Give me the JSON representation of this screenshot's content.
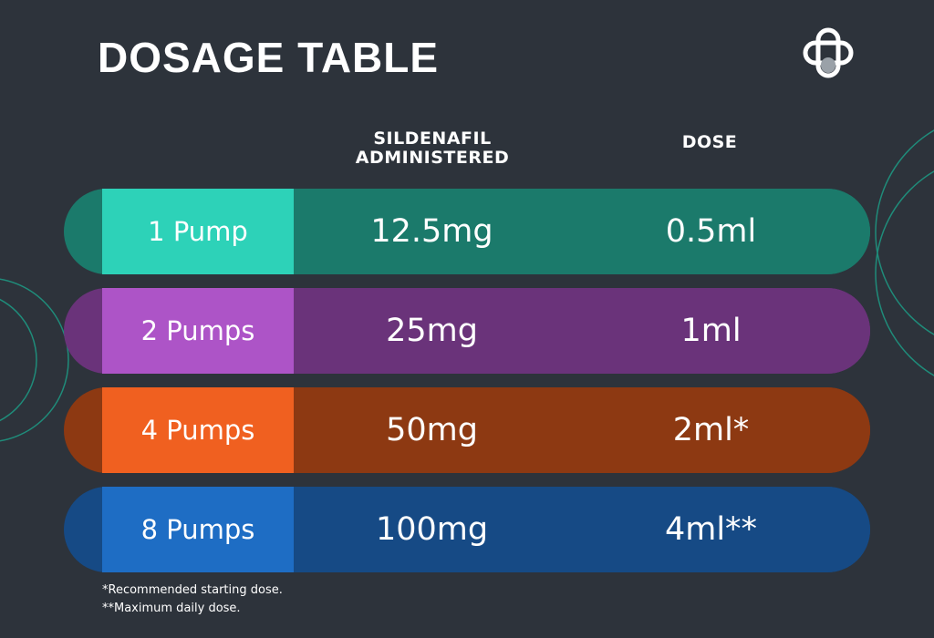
{
  "title": "DOSAGE TABLE",
  "logo": {
    "icon": "cross-pill-logo-icon",
    "color": "#ffffff"
  },
  "columns": {
    "amount": "SILDENAFIL\nADMINISTERED",
    "dose": "DOSE"
  },
  "rows": [
    {
      "label": "1 Pump",
      "amount": "12.5mg",
      "dose": "0.5ml",
      "accent": "#2dd2b8",
      "cap": "#1b7a6b",
      "fill": "#1b7a6b"
    },
    {
      "label": "2 Pumps",
      "amount": "25mg",
      "dose": "1ml",
      "accent": "#ad54c7",
      "cap": "#6a337a",
      "fill": "#6a337a"
    },
    {
      "label": "4 Pumps",
      "amount": "50mg",
      "dose": "2ml*",
      "accent": "#f06020",
      "cap": "#8d3912",
      "fill": "#8d3912"
    },
    {
      "label": "8 Pumps",
      "amount": "100mg",
      "dose": "4ml**",
      "accent": "#1e6dc4",
      "cap": "#164a85",
      "fill": "#164a85"
    }
  ],
  "footnotes": [
    "*Recommended starting dose.",
    "**Maximum daily dose."
  ],
  "colors": {
    "background": "#2d333b",
    "decoration": "#1f8c7a"
  }
}
